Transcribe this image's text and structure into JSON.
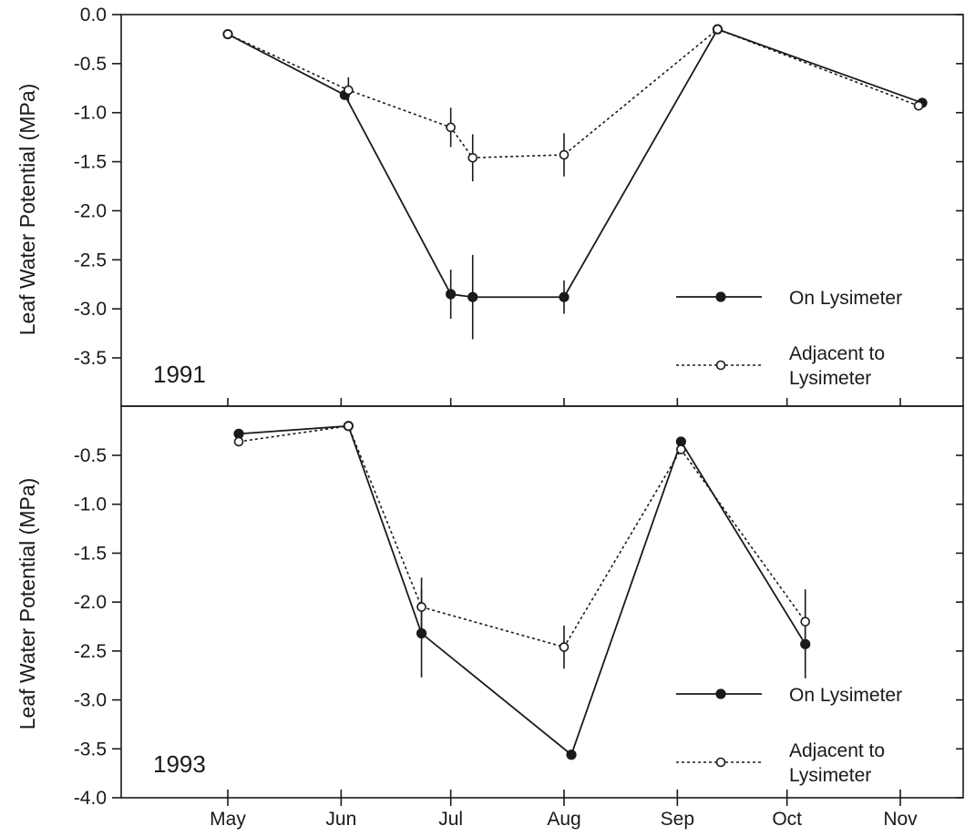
{
  "chart_data": [
    {
      "type": "line",
      "annotation": "1991",
      "ylabel": "Leaf Water Potential (MPa)",
      "ylim": [
        -4.0,
        0.0
      ],
      "yticks": [
        0.0,
        -0.5,
        -1.0,
        -1.5,
        -2.0,
        -2.5,
        -3.0,
        -3.5
      ],
      "ytick_labels": [
        "0.0",
        "-0.5",
        "-1.0",
        "-1.5",
        "-2.0",
        "-2.5",
        "-3.0",
        "-3.5"
      ],
      "xlim": [
        "Apr 26",
        "Nov 26"
      ],
      "xticks": [
        "May 1",
        "Jun 1",
        "Jul 1",
        "Aug 1",
        "Sep 1",
        "Oct 1",
        "Nov 1"
      ],
      "xtick_labels": [
        "May",
        "Jun",
        "Jul",
        "Aug",
        "Sep",
        "Oct",
        "Nov"
      ],
      "legend": {
        "position": "lower-right",
        "entries": [
          "On Lysimeter",
          "Adjacent to Lysimeter"
        ]
      },
      "series": [
        {
          "name": "On Lysimeter",
          "marker": "filled",
          "line": "solid",
          "points": [
            {
              "x": "May 1",
              "y": -0.2
            },
            {
              "x": "Jun 2",
              "y": -0.82
            },
            {
              "x": "Jul 1",
              "y": -2.85,
              "err": 0.25
            },
            {
              "x": "Jul 7",
              "y": -2.88,
              "err": 0.43
            },
            {
              "x": "Aug 1",
              "y": -2.88,
              "err": 0.17
            },
            {
              "x": "Sep 12",
              "y": -0.15
            },
            {
              "x": "Nov 7",
              "y": -0.9
            }
          ]
        },
        {
          "name": "Adjacent to Lysimeter",
          "marker": "open",
          "line": "dotted",
          "points": [
            {
              "x": "May 1",
              "y": -0.2
            },
            {
              "x": "Jun 3",
              "y": -0.77,
              "err": 0.13
            },
            {
              "x": "Jul 1",
              "y": -1.15,
              "err": 0.2
            },
            {
              "x": "Jul 7",
              "y": -1.46,
              "err": 0.24
            },
            {
              "x": "Aug 1",
              "y": -1.43,
              "err": 0.22
            },
            {
              "x": "Sep 12",
              "y": -0.15
            },
            {
              "x": "Nov 6",
              "y": -0.93
            }
          ]
        }
      ]
    },
    {
      "type": "line",
      "annotation": "1993",
      "ylabel": "Leaf Water Potential (MPa)",
      "ylim": [
        -4.0,
        -0.2
      ],
      "yticks": [
        -0.5,
        -1.0,
        -1.5,
        -2.0,
        -2.5,
        -3.0,
        -3.5,
        -4.0
      ],
      "ytick_labels": [
        "-0.5",
        "-1.0",
        "-1.5",
        "-2.0",
        "-2.5",
        "-3.0",
        "-3.5",
        "-4.0"
      ],
      "xlim": [
        "Apr 26",
        "Nov 26"
      ],
      "xticks": [
        "May 1",
        "Jun 1",
        "Jul 1",
        "Aug 1",
        "Sep 1",
        "Oct 1",
        "Nov 1"
      ],
      "xtick_labels": [
        "May",
        "Jun",
        "Jul",
        "Aug",
        "Sep",
        "Oct",
        "Nov"
      ],
      "legend": {
        "position": "lower-right",
        "entries": [
          "On Lysimeter",
          "Adjacent to Lysimeter"
        ]
      },
      "series": [
        {
          "name": "On Lysimeter",
          "marker": "filled",
          "line": "solid",
          "points": [
            {
              "x": "May 4",
              "y": -0.28
            },
            {
              "x": "Jun 3",
              "y": -0.2
            },
            {
              "x": "Jun 23",
              "y": -2.32,
              "err": 0.45
            },
            {
              "x": "Aug 3",
              "y": -3.56
            },
            {
              "x": "Sep 2",
              "y": -0.36
            },
            {
              "x": "Oct 6",
              "y": -2.43,
              "err": 0.35
            }
          ]
        },
        {
          "name": "Adjacent to Lysimeter",
          "marker": "open",
          "line": "dotted",
          "points": [
            {
              "x": "May 4",
              "y": -0.36
            },
            {
              "x": "Jun 3",
              "y": -0.2
            },
            {
              "x": "Jun 23",
              "y": -2.05,
              "err": 0.3
            },
            {
              "x": "Aug 1",
              "y": -2.46,
              "err": 0.22
            },
            {
              "x": "Sep 2",
              "y": -0.44
            },
            {
              "x": "Oct 6",
              "y": -2.2,
              "err": 0.33
            }
          ]
        }
      ]
    }
  ]
}
